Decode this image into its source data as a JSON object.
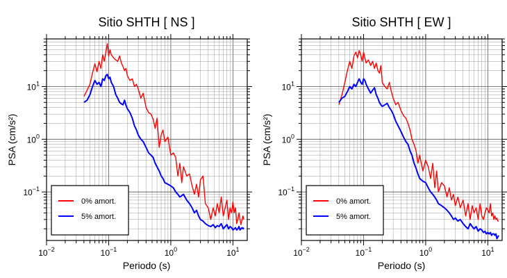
{
  "chart_data": [
    {
      "type": "line",
      "title": "Sitio SHTH [ NS ]",
      "xlabel": "Periodo (s)",
      "ylabel": "PSA (cm/s²)",
      "xscale": "log",
      "yscale": "log",
      "xlim": [
        0.01,
        17
      ],
      "ylim": [
        0.012,
        80
      ],
      "grid": true,
      "legend_position": "bottom-left",
      "x_ticks": [
        {
          "base": "10",
          "exp": "−2"
        },
        {
          "base": "10",
          "exp": "−1"
        },
        {
          "base": "10",
          "exp": "0"
        },
        {
          "base": "10",
          "exp": "1"
        }
      ],
      "y_ticks": [
        {
          "base": "10",
          "exp": "−1"
        },
        {
          "base": "10",
          "exp": "0"
        },
        {
          "base": "10",
          "exp": "1"
        }
      ],
      "series": [
        {
          "name": "0% amort.",
          "color": "#ff0000",
          "x": [
            0.04,
            0.045,
            0.05,
            0.055,
            0.06,
            0.065,
            0.07,
            0.075,
            0.08,
            0.085,
            0.09,
            0.095,
            0.1,
            0.105,
            0.11,
            0.12,
            0.13,
            0.14,
            0.15,
            0.16,
            0.17,
            0.18,
            0.19,
            0.2,
            0.22,
            0.24,
            0.26,
            0.28,
            0.3,
            0.33,
            0.36,
            0.4,
            0.44,
            0.48,
            0.52,
            0.56,
            0.6,
            0.65,
            0.7,
            0.75,
            0.8,
            0.9,
            1.0,
            1.1,
            1.2,
            1.3,
            1.4,
            1.5,
            1.6,
            1.8,
            2.0,
            2.2,
            2.4,
            2.6,
            2.8,
            3.0,
            3.3,
            3.6,
            4.0,
            4.4,
            4.8,
            5.2,
            5.6,
            6.0,
            6.5,
            7.0,
            7.5,
            8.0,
            8.5,
            9.0,
            9.5,
            10.0,
            10.5,
            11.0,
            11.5,
            12.0,
            12.5,
            13.0,
            13.5,
            14.0,
            14.5,
            15.0
          ],
          "y": [
            6.5,
            8.5,
            11,
            18,
            27,
            19,
            30,
            22,
            40,
            30,
            45,
            65,
            38,
            50,
            40,
            35,
            32,
            30,
            38,
            28,
            24,
            20,
            22,
            16,
            13,
            14,
            10,
            11,
            9,
            6,
            7.5,
            4,
            3.2,
            3.0,
            2.4,
            1.6,
            2.5,
            0.7,
            1.2,
            1.5,
            0.9,
            1.1,
            0.5,
            0.55,
            0.45,
            0.2,
            0.35,
            0.15,
            0.3,
            0.2,
            0.22,
            0.13,
            0.09,
            0.14,
            0.08,
            0.17,
            0.2,
            0.06,
            0.05,
            0.03,
            0.05,
            0.035,
            0.06,
            0.04,
            0.08,
            0.035,
            0.05,
            0.07,
            0.03,
            0.05,
            0.04,
            0.065,
            0.04,
            0.05,
            0.025,
            0.03,
            0.04,
            0.03,
            0.024,
            0.03,
            0.035,
            0.03
          ]
        },
        {
          "name": "5% amort.",
          "color": "#0000ff",
          "x": [
            0.04,
            0.045,
            0.05,
            0.055,
            0.06,
            0.065,
            0.07,
            0.075,
            0.08,
            0.085,
            0.09,
            0.095,
            0.1,
            0.105,
            0.11,
            0.12,
            0.13,
            0.14,
            0.15,
            0.16,
            0.17,
            0.18,
            0.19,
            0.2,
            0.22,
            0.24,
            0.26,
            0.28,
            0.3,
            0.33,
            0.36,
            0.4,
            0.44,
            0.48,
            0.52,
            0.56,
            0.6,
            0.65,
            0.7,
            0.75,
            0.8,
            0.9,
            1.0,
            1.1,
            1.2,
            1.3,
            1.4,
            1.5,
            1.6,
            1.8,
            2.0,
            2.2,
            2.4,
            2.6,
            2.8,
            3.0,
            3.3,
            3.6,
            4.0,
            4.4,
            4.8,
            5.2,
            5.6,
            6.0,
            6.5,
            7.0,
            7.5,
            8.0,
            8.5,
            9.0,
            9.5,
            10.0,
            10.5,
            11.0,
            11.5,
            12.0,
            12.5,
            13.0,
            13.5,
            14.0,
            14.5,
            15.0
          ],
          "y": [
            5.0,
            5.5,
            7,
            10,
            13,
            11,
            12,
            10,
            14,
            13,
            16,
            17,
            14,
            15,
            12,
            10,
            7,
            6,
            5,
            4.7,
            4.5,
            5.5,
            4.4,
            3.8,
            3.2,
            2.5,
            1.8,
            1.5,
            1.2,
            1.0,
            0.9,
            0.7,
            0.55,
            0.5,
            0.45,
            0.35,
            0.3,
            0.25,
            0.2,
            0.18,
            0.15,
            0.14,
            0.13,
            0.12,
            0.1,
            0.09,
            0.08,
            0.085,
            0.09,
            0.07,
            0.06,
            0.05,
            0.04,
            0.045,
            0.035,
            0.03,
            0.028,
            0.025,
            0.023,
            0.022,
            0.024,
            0.021,
            0.023,
            0.022,
            0.025,
            0.02,
            0.022,
            0.024,
            0.02,
            0.022,
            0.021,
            0.019,
            0.02,
            0.021,
            0.019,
            0.02,
            0.022,
            0.019,
            0.02,
            0.021,
            0.02,
            0.021
          ]
        }
      ]
    },
    {
      "type": "line",
      "title": "Sitio SHTH [ EW ]",
      "xlabel": "Periodo (s)",
      "ylabel": "PSA (cm/s²)",
      "xscale": "log",
      "yscale": "log",
      "xlim": [
        0.01,
        17
      ],
      "ylim": [
        0.012,
        80
      ],
      "grid": true,
      "legend_position": "bottom-left",
      "x_ticks": [
        {
          "base": "10",
          "exp": "−2"
        },
        {
          "base": "10",
          "exp": "−1"
        },
        {
          "base": "10",
          "exp": "0"
        },
        {
          "base": "10",
          "exp": "1"
        }
      ],
      "y_ticks": [
        {
          "base": "10",
          "exp": "−1"
        },
        {
          "base": "10",
          "exp": "0"
        },
        {
          "base": "10",
          "exp": "1"
        }
      ],
      "series": [
        {
          "name": "0% amort.",
          "color": "#ff0000",
          "x": [
            0.04,
            0.045,
            0.05,
            0.055,
            0.06,
            0.065,
            0.07,
            0.075,
            0.08,
            0.085,
            0.09,
            0.095,
            0.1,
            0.105,
            0.11,
            0.12,
            0.13,
            0.14,
            0.15,
            0.16,
            0.17,
            0.18,
            0.19,
            0.2,
            0.22,
            0.24,
            0.26,
            0.28,
            0.3,
            0.33,
            0.36,
            0.4,
            0.44,
            0.48,
            0.52,
            0.56,
            0.6,
            0.65,
            0.7,
            0.75,
            0.8,
            0.9,
            1.0,
            1.1,
            1.2,
            1.3,
            1.4,
            1.5,
            1.6,
            1.8,
            2.0,
            2.2,
            2.4,
            2.6,
            2.8,
            3.0,
            3.3,
            3.6,
            4.0,
            4.4,
            4.8,
            5.2,
            5.6,
            6.0,
            6.5,
            7.0,
            7.5,
            8.0,
            8.5,
            9.0,
            9.5,
            10.0,
            10.5,
            11.0,
            11.5,
            12.0,
            12.5,
            13.0,
            13.5,
            14.0,
            14.5,
            15.0
          ],
          "y": [
            4.5,
            7,
            12,
            20,
            30,
            22,
            38,
            45,
            35,
            48,
            40,
            30,
            45,
            35,
            28,
            32,
            25,
            30,
            22,
            28,
            20,
            18,
            25,
            12,
            10,
            9,
            12,
            8,
            6,
            4.5,
            5,
            3.5,
            2.8,
            2.5,
            2.0,
            1.5,
            1.0,
            0.8,
            0.6,
            0.35,
            0.5,
            0.25,
            0.4,
            0.3,
            0.18,
            0.35,
            0.12,
            0.25,
            0.1,
            0.15,
            0.13,
            0.08,
            0.12,
            0.07,
            0.09,
            0.055,
            0.08,
            0.05,
            0.07,
            0.035,
            0.06,
            0.03,
            0.055,
            0.04,
            0.05,
            0.03,
            0.06,
            0.035,
            0.03,
            0.04,
            0.05,
            0.045,
            0.04,
            0.06,
            0.035,
            0.04,
            0.03,
            0.035,
            0.03,
            0.032,
            0.028,
            0.028
          ]
        },
        {
          "name": "5% amort.",
          "color": "#0000ff",
          "x": [
            0.04,
            0.045,
            0.05,
            0.055,
            0.06,
            0.065,
            0.07,
            0.075,
            0.08,
            0.085,
            0.09,
            0.095,
            0.1,
            0.105,
            0.11,
            0.12,
            0.13,
            0.14,
            0.15,
            0.16,
            0.17,
            0.18,
            0.19,
            0.2,
            0.22,
            0.24,
            0.26,
            0.28,
            0.3,
            0.33,
            0.36,
            0.4,
            0.44,
            0.48,
            0.52,
            0.56,
            0.6,
            0.65,
            0.7,
            0.75,
            0.8,
            0.9,
            1.0,
            1.1,
            1.2,
            1.3,
            1.4,
            1.5,
            1.6,
            1.8,
            2.0,
            2.2,
            2.4,
            2.6,
            2.8,
            3.0,
            3.3,
            3.6,
            4.0,
            4.4,
            4.8,
            5.2,
            5.6,
            6.0,
            6.5,
            7.0,
            7.5,
            8.0,
            8.5,
            9.0,
            9.5,
            10.0,
            10.5,
            11.0,
            11.5,
            12.0,
            12.5,
            13.0,
            13.5,
            14.0,
            14.5,
            15.0
          ],
          "y": [
            5.0,
            6,
            6.5,
            8,
            10,
            9,
            11,
            10,
            12,
            14,
            12,
            11,
            14,
            13,
            11,
            9,
            7.5,
            8.5,
            9.5,
            7,
            6,
            5,
            4.5,
            4.2,
            4.5,
            4.8,
            4.0,
            3.5,
            3.0,
            2.2,
            1.8,
            1.4,
            1.1,
            0.9,
            0.8,
            0.6,
            0.5,
            0.35,
            0.28,
            0.22,
            0.18,
            0.16,
            0.15,
            0.12,
            0.1,
            0.09,
            0.08,
            0.07,
            0.06,
            0.055,
            0.05,
            0.045,
            0.04,
            0.035,
            0.03,
            0.032,
            0.028,
            0.03,
            0.025,
            0.022,
            0.02,
            0.025,
            0.022,
            0.02,
            0.022,
            0.018,
            0.02,
            0.019,
            0.017,
            0.018,
            0.016,
            0.017,
            0.016,
            0.017,
            0.015,
            0.016,
            0.016,
            0.015,
            0.016,
            0.013,
            0.014,
            0.015
          ]
        }
      ]
    }
  ]
}
